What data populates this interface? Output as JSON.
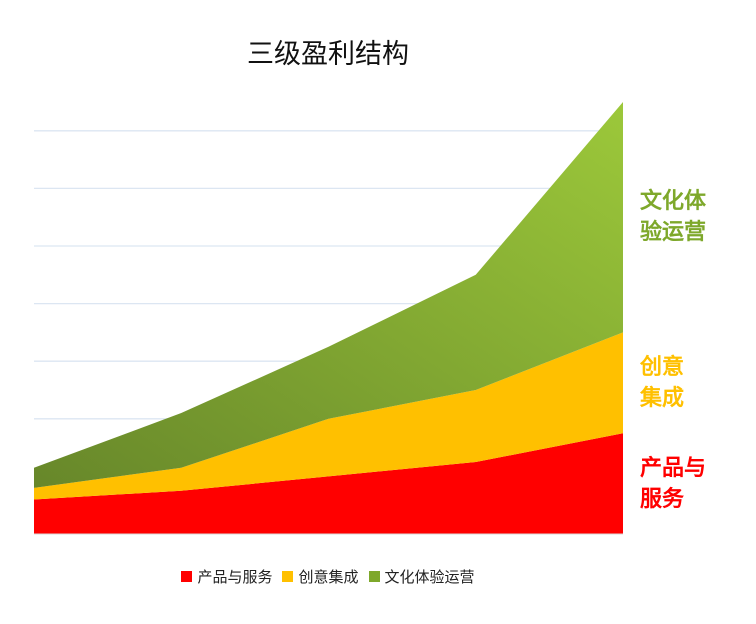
{
  "chart_data": {
    "type": "area",
    "stacked": true,
    "title": "三级盈利结构",
    "xlabel": "",
    "ylabel": "",
    "x": [
      0,
      1,
      2,
      3,
      4
    ],
    "ylim": [
      0,
      15
    ],
    "grid": true,
    "legend_position": "bottom",
    "series": [
      {
        "name": "产品与服务",
        "values": [
          1.2,
          1.5,
          2.0,
          2.5,
          3.5
        ],
        "color": "#ff0000",
        "label_lines": [
          "产品与",
          "服务"
        ]
      },
      {
        "name": "创意集成",
        "values": [
          0.4,
          0.8,
          2.0,
          2.5,
          3.5
        ],
        "color": "#ffc000",
        "label_lines": [
          "创意",
          "集成"
        ]
      },
      {
        "name": "文化体验运营",
        "values": [
          0.7,
          1.9,
          2.5,
          4.0,
          8.0
        ],
        "color": "#7ea82b",
        "label_lines": [
          "文化体",
          "验运营"
        ]
      }
    ]
  }
}
